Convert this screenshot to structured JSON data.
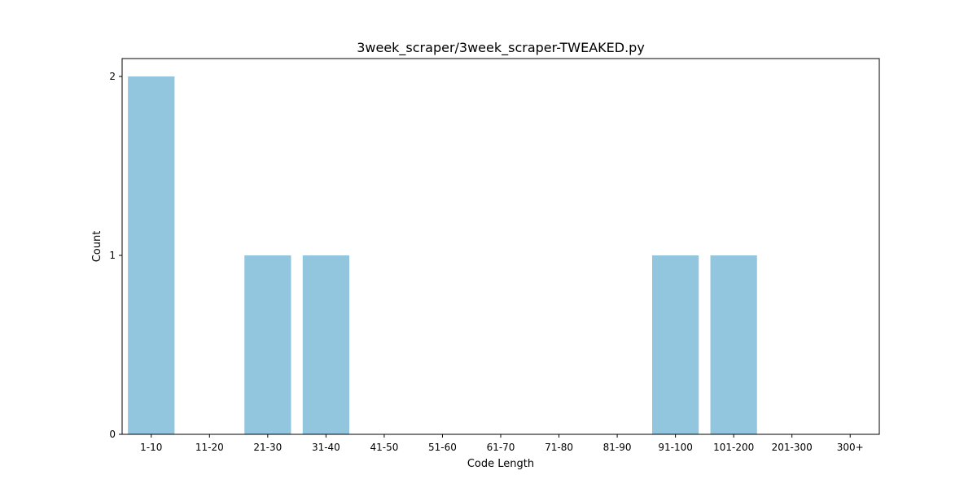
{
  "chart_data": {
    "type": "bar",
    "title": "3week_scraper/3week_scraper-TWEAKED.py",
    "xlabel": "Code Length",
    "ylabel": "Count",
    "categories": [
      "1-10",
      "11-20",
      "21-30",
      "31-40",
      "41-50",
      "51-60",
      "61-70",
      "71-80",
      "81-90",
      "91-100",
      "101-200",
      "201-300",
      "300+"
    ],
    "values": [
      2,
      0,
      1,
      1,
      0,
      0,
      0,
      0,
      0,
      1,
      1,
      0,
      0
    ],
    "yticks": [
      0,
      1,
      2
    ],
    "ylim": [
      0,
      2.1
    ],
    "grid": false,
    "bar_color": "#92c5de"
  }
}
